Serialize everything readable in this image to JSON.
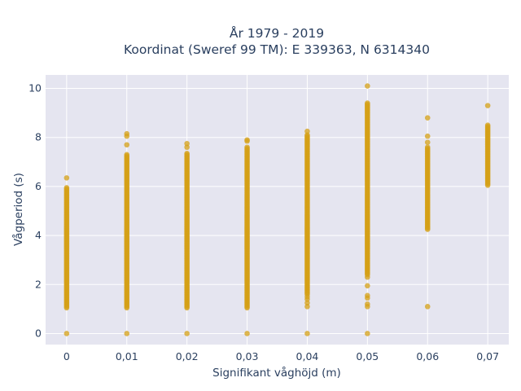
{
  "chart_data": {
    "type": "scatter",
    "title": "År 1979 - 2019",
    "subtitle": "Koordinat (Sweref 99 TM): E 339363, N 6314340",
    "xlabel": "Signifikant våghöjd (m)",
    "ylabel": "Vågperiod (s)",
    "xlim": [
      -0.0035,
      0.0735
    ],
    "ylim": [
      -0.45,
      10.55
    ],
    "x_ticks": [
      0,
      0.01,
      0.02,
      0.03,
      0.04,
      0.05,
      0.06,
      0.07
    ],
    "x_tick_labels": [
      "0",
      "0,01",
      "0,02",
      "0,03",
      "0,04",
      "0,05",
      "0,06",
      "0,07"
    ],
    "y_ticks": [
      0,
      2,
      4,
      6,
      8,
      10
    ],
    "y_tick_labels": [
      "0",
      "2",
      "4",
      "6",
      "8",
      "10"
    ],
    "grid": true,
    "legend": "none",
    "marker_color": "#D4A017",
    "plot_bg": "#e5e5f0",
    "series": [
      {
        "columns": [
          {
            "x": 0.0,
            "ranges": [
              [
                1.05,
                5.95
              ]
            ],
            "points": [
              0,
              6.35
            ]
          },
          {
            "x": 0.01,
            "ranges": [
              [
                1.05,
                7.3
              ]
            ],
            "points": [
              0,
              7.7,
              8.05,
              8.15
            ]
          },
          {
            "x": 0.02,
            "ranges": [
              [
                1.05,
                7.35
              ]
            ],
            "points": [
              0,
              7.6,
              7.75
            ]
          },
          {
            "x": 0.03,
            "ranges": [
              [
                1.05,
                7.6
              ]
            ],
            "points": [
              0,
              7.85,
              7.9
            ]
          },
          {
            "x": 0.04,
            "ranges": [
              [
                1.6,
                8.1
              ]
            ],
            "points": [
              0,
              1.1,
              1.25,
              1.4,
              1.5,
              8.25
            ]
          },
          {
            "x": 0.05,
            "ranges": [
              [
                2.4,
                9.4
              ]
            ],
            "points": [
              0,
              1.1,
              1.2,
              1.45,
              1.55,
              1.95,
              2.3,
              10.1
            ]
          },
          {
            "x": 0.06,
            "ranges": [
              [
                4.25,
                7.6
              ]
            ],
            "points": [
              1.1,
              7.8,
              8.05,
              8.8
            ]
          },
          {
            "x": 0.07,
            "ranges": [
              [
                6.05,
                8.5
              ]
            ],
            "points": [
              9.3
            ]
          }
        ]
      }
    ]
  }
}
